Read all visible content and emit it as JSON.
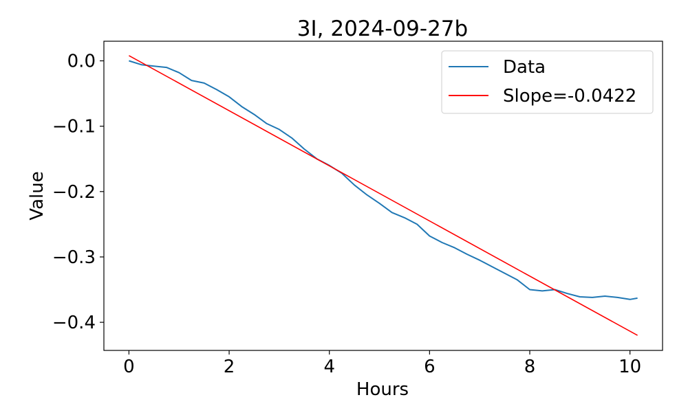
{
  "chart_data": {
    "type": "line",
    "title": "3I, 2024-09-27b",
    "xlabel": "Hours",
    "ylabel": "Value",
    "xlim": [
      -0.5,
      10.65
    ],
    "ylim": [
      -0.443,
      0.03
    ],
    "xticks": [
      0,
      2,
      4,
      6,
      8,
      10
    ],
    "xtick_labels": [
      "0",
      "2",
      "4",
      "6",
      "8",
      "10"
    ],
    "yticks": [
      0.0,
      -0.1,
      -0.2,
      -0.3,
      -0.4
    ],
    "ytick_labels": [
      "0.0",
      "−0.1",
      "−0.2",
      "−0.3",
      "−0.4"
    ],
    "grid": false,
    "legend_position": "top-right",
    "series": [
      {
        "name": "Data",
        "kind": "line",
        "color": "#1f77b4",
        "x": [
          0,
          0.25,
          0.5,
          0.75,
          1.0,
          1.25,
          1.5,
          1.75,
          2.0,
          2.25,
          2.5,
          2.75,
          3.0,
          3.25,
          3.5,
          3.75,
          4.0,
          4.25,
          4.5,
          4.75,
          5.0,
          5.25,
          5.5,
          5.75,
          6.0,
          6.25,
          6.5,
          6.75,
          7.0,
          7.25,
          7.5,
          7.75,
          8.0,
          8.25,
          8.5,
          8.75,
          9.0,
          9.25,
          9.5,
          9.75,
          10.0,
          10.15
        ],
        "values": [
          0.0,
          -0.006,
          -0.008,
          -0.01,
          -0.018,
          -0.03,
          -0.034,
          -0.044,
          -0.055,
          -0.07,
          -0.082,
          -0.096,
          -0.105,
          -0.118,
          -0.135,
          -0.15,
          -0.16,
          -0.172,
          -0.19,
          -0.205,
          -0.218,
          -0.232,
          -0.24,
          -0.25,
          -0.268,
          -0.278,
          -0.286,
          -0.296,
          -0.305,
          -0.315,
          -0.325,
          -0.335,
          -0.35,
          -0.352,
          -0.35,
          -0.356,
          -0.361,
          -0.362,
          -0.36,
          -0.362,
          -0.365,
          -0.363
        ]
      },
      {
        "name": "Slope=-0.0422",
        "kind": "line",
        "color": "#ff0000",
        "x": [
          0,
          10.15
        ],
        "values": [
          0.008,
          -0.42
        ]
      }
    ]
  }
}
